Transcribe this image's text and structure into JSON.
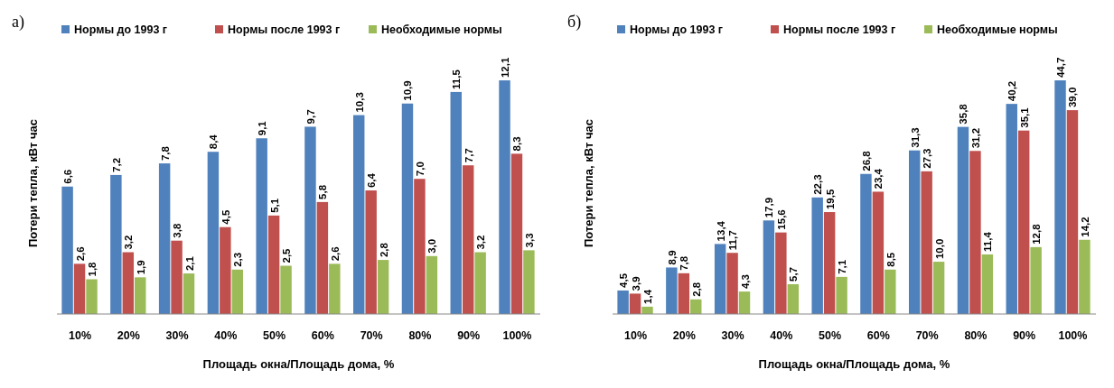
{
  "chart_data": [
    {
      "type": "bar",
      "title": "а)",
      "xlabel": "Площадь окна/Площадь дома, %",
      "ylabel": "Потери тепла, кВт час",
      "legend": "top",
      "categories": [
        "10%",
        "20%",
        "30%",
        "40%",
        "50%",
        "60%",
        "70%",
        "80%",
        "90%",
        "100%"
      ],
      "series": [
        {
          "name": "Нормы до 1993 г",
          "color": "#4f81bd",
          "values": [
            6.6,
            7.2,
            7.8,
            8.4,
            9.1,
            9.7,
            10.3,
            10.9,
            11.5,
            12.1
          ],
          "value_labels": [
            "6,6",
            "7,2",
            "7,8",
            "8,4",
            "9,1",
            "9,7",
            "10,3",
            "10,9",
            "11,5",
            "12,1"
          ]
        },
        {
          "name": "Нормы после 1993 г",
          "color": "#c0504d",
          "values": [
            2.6,
            3.2,
            3.8,
            4.5,
            5.1,
            5.8,
            6.4,
            7.0,
            7.7,
            8.3
          ],
          "value_labels": [
            "2,6",
            "3,2",
            "3,8",
            "4,5",
            "5,1",
            "5,8",
            "6,4",
            "7,0",
            "7,7",
            "8,3"
          ]
        },
        {
          "name": "Необходимые нормы",
          "color": "#9bbb59",
          "values": [
            1.8,
            1.9,
            2.1,
            2.3,
            2.5,
            2.6,
            2.8,
            3.0,
            3.2,
            3.3
          ],
          "value_labels": [
            "1,8",
            "1,9",
            "2,1",
            "2,3",
            "2,5",
            "2,6",
            "2,8",
            "3,0",
            "3,2",
            "3,3"
          ]
        }
      ]
    },
    {
      "type": "bar",
      "title": "б)",
      "xlabel": "Площадь окна/Площадь дома, %",
      "ylabel": "Потери тепла, кВт час",
      "legend": "top",
      "categories": [
        "10%",
        "20%",
        "30%",
        "40%",
        "50%",
        "60%",
        "70%",
        "80%",
        "90%",
        "100%"
      ],
      "series": [
        {
          "name": "Нормы до 1993 г",
          "color": "#4f81bd",
          "values": [
            4.5,
            8.9,
            13.4,
            17.9,
            22.3,
            26.8,
            31.3,
            35.8,
            40.2,
            44.7
          ],
          "value_labels": [
            "4,5",
            "8,9",
            "13,4",
            "17,9",
            "22,3",
            "26,8",
            "31,3",
            "35,8",
            "40,2",
            "44,7"
          ]
        },
        {
          "name": "Нормы после 1993 г",
          "color": "#c0504d",
          "values": [
            3.9,
            7.8,
            11.7,
            15.6,
            19.5,
            23.4,
            27.3,
            31.2,
            35.1,
            39.0
          ],
          "value_labels": [
            "3,9",
            "7,8",
            "11,7",
            "15,6",
            "19,5",
            "23,4",
            "27,3",
            "31,2",
            "35,1",
            "39,0"
          ]
        },
        {
          "name": "Необходимые нормы",
          "color": "#9bbb59",
          "values": [
            1.4,
            2.8,
            4.3,
            5.7,
            7.1,
            8.5,
            10.0,
            11.4,
            12.8,
            14.2
          ],
          "value_labels": [
            "1,4",
            "2,8",
            "4,3",
            "5,7",
            "7,1",
            "8,5",
            "10,0",
            "11,4",
            "12,8",
            "14,2"
          ]
        }
      ]
    }
  ]
}
